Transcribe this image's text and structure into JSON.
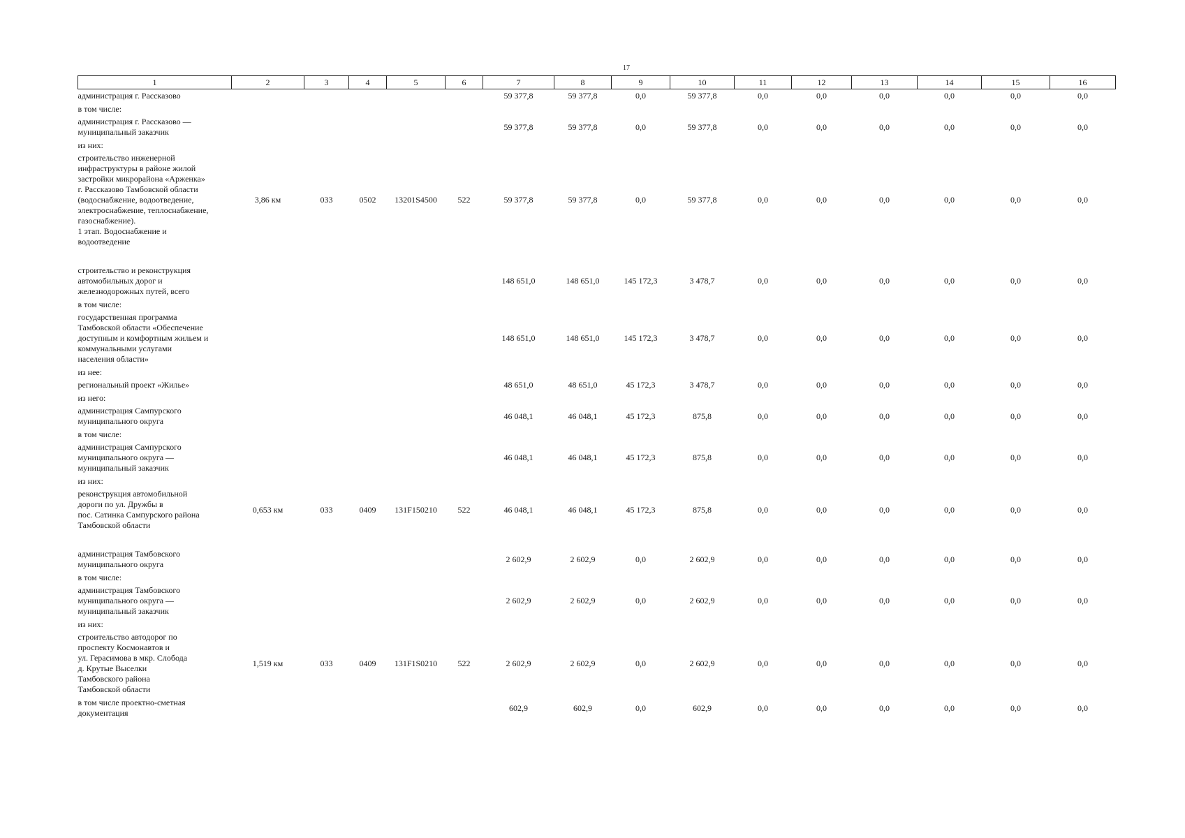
{
  "page_number": "17",
  "header": [
    "1",
    "2",
    "3",
    "4",
    "5",
    "6",
    "7",
    "8",
    "9",
    "10",
    "11",
    "12",
    "13",
    "14",
    "15",
    "16"
  ],
  "rows": [
    {
      "label": "администрация г. Рассказово",
      "c2": "",
      "c3": "",
      "c4": "",
      "c5": "",
      "c6": "",
      "c7": "59 377,8",
      "c8": "59 377,8",
      "c9": "0,0",
      "c10": "59 377,8",
      "c11": "0,0",
      "c12": "0,0",
      "c13": "0,0",
      "c14": "0,0",
      "c15": "0,0",
      "c16": "0,0"
    },
    {
      "label": "в том числе:"
    },
    {
      "label": "администрация г. Рассказово —\nмуниципальный заказчик",
      "c2": "",
      "c3": "",
      "c4": "",
      "c5": "",
      "c6": "",
      "c7": "59 377,8",
      "c8": "59 377,8",
      "c9": "0,0",
      "c10": "59 377,8",
      "c11": "0,0",
      "c12": "0,0",
      "c13": "0,0",
      "c14": "0,0",
      "c15": "0,0",
      "c16": "0,0"
    },
    {
      "label": "из них:"
    },
    {
      "label": "строительство инженерной\nинфраструктуры в районе жилой\nзастройки микрорайона «Арженка»\nг. Рассказово Тамбовской области\n(водоснабжение, водоотведение,\nэлектроснабжение, теплоснабжение,\nгазоснабжение).\n1 этап. Водоснабжение и\nводоотведение",
      "c2": "3,86 км",
      "c3": "033",
      "c4": "0502",
      "c5": "13201S4500",
      "c6": "522",
      "c7": "59 377,8",
      "c8": "59 377,8",
      "c9": "0,0",
      "c10": "59 377,8",
      "c11": "0,0",
      "c12": "0,0",
      "c13": "0,0",
      "c14": "0,0",
      "c15": "0,0",
      "c16": "0,0",
      "gap_after": true
    },
    {
      "label": "строительство и реконструкция\nавтомобильных дорог и\nжелезнодорожных путей, всего",
      "c2": "",
      "c3": "",
      "c4": "",
      "c5": "",
      "c6": "",
      "c7": "148 651,0",
      "c8": "148 651,0",
      "c9": "145 172,3",
      "c10": "3 478,7",
      "c11": "0,0",
      "c12": "0,0",
      "c13": "0,0",
      "c14": "0,0",
      "c15": "0,0",
      "c16": "0,0"
    },
    {
      "label": "в том числе:"
    },
    {
      "label": "государственная программа\nТамбовской области «Обеспечение\nдоступным и комфортным жильем и\nкоммунальными услугами\nнаселения области»",
      "c2": "",
      "c3": "",
      "c4": "",
      "c5": "",
      "c6": "",
      "c7": "148 651,0",
      "c8": "148 651,0",
      "c9": "145 172,3",
      "c10": "3 478,7",
      "c11": "0,0",
      "c12": "0,0",
      "c13": "0,0",
      "c14": "0,0",
      "c15": "0,0",
      "c16": "0,0"
    },
    {
      "label": "из нее:"
    },
    {
      "label": "региональный проект «Жилье»",
      "c2": "",
      "c3": "",
      "c4": "",
      "c5": "",
      "c6": "",
      "c7": "48 651,0",
      "c8": "48 651,0",
      "c9": "45 172,3",
      "c10": "3 478,7",
      "c11": "0,0",
      "c12": "0,0",
      "c13": "0,0",
      "c14": "0,0",
      "c15": "0,0",
      "c16": "0,0"
    },
    {
      "label": "из него:"
    },
    {
      "label": "администрация Сампурского\nмуниципального округа",
      "c2": "",
      "c3": "",
      "c4": "",
      "c5": "",
      "c6": "",
      "c7": "46 048,1",
      "c8": "46 048,1",
      "c9": "45 172,3",
      "c10": "875,8",
      "c11": "0,0",
      "c12": "0,0",
      "c13": "0,0",
      "c14": "0,0",
      "c15": "0,0",
      "c16": "0,0"
    },
    {
      "label": "в том числе:"
    },
    {
      "label": "администрация Сампурского\nмуниципального округа —\nмуниципальный заказчик",
      "c2": "",
      "c3": "",
      "c4": "",
      "c5": "",
      "c6": "",
      "c7": "46 048,1",
      "c8": "46 048,1",
      "c9": "45 172,3",
      "c10": "875,8",
      "c11": "0,0",
      "c12": "0,0",
      "c13": "0,0",
      "c14": "0,0",
      "c15": "0,0",
      "c16": "0,0"
    },
    {
      "label": "из них:"
    },
    {
      "label": "реконструкция автомобильной\nдороги по ул. Дружбы в\nпос. Сатинка Сампурского района\nТамбовской области",
      "c2": "0,653 км",
      "c3": "033",
      "c4": "0409",
      "c5": "131F150210",
      "c6": "522",
      "c7": "46 048,1",
      "c8": "46 048,1",
      "c9": "45 172,3",
      "c10": "875,8",
      "c11": "0,0",
      "c12": "0,0",
      "c13": "0,0",
      "c14": "0,0",
      "c15": "0,0",
      "c16": "0,0",
      "gap_after": true
    },
    {
      "label": "администрация Тамбовского\nмуниципального округа",
      "c2": "",
      "c3": "",
      "c4": "",
      "c5": "",
      "c6": "",
      "c7": "2 602,9",
      "c8": "2 602,9",
      "c9": "0,0",
      "c10": "2 602,9",
      "c11": "0,0",
      "c12": "0,0",
      "c13": "0,0",
      "c14": "0,0",
      "c15": "0,0",
      "c16": "0,0"
    },
    {
      "label": "в том числе:"
    },
    {
      "label": "администрация Тамбовского\nмуниципального округа —\nмуниципальный заказчик",
      "c2": "",
      "c3": "",
      "c4": "",
      "c5": "",
      "c6": "",
      "c7": "2 602,9",
      "c8": "2 602,9",
      "c9": "0,0",
      "c10": "2 602,9",
      "c11": "0,0",
      "c12": "0,0",
      "c13": "0,0",
      "c14": "0,0",
      "c15": "0,0",
      "c16": "0,0"
    },
    {
      "label": "из них:"
    },
    {
      "label": "строительство автодорог по\nпроспекту Космонавтов и\nул. Герасимова в мкр. Слобода\nд. Крутые Выселки\nТамбовского района\nТамбовской области",
      "c2": "1,519 км",
      "c3": "033",
      "c4": "0409",
      "c5": "131F1S0210",
      "c6": "522",
      "c7": "2 602,9",
      "c8": "2 602,9",
      "c9": "0,0",
      "c10": "2 602,9",
      "c11": "0,0",
      "c12": "0,0",
      "c13": "0,0",
      "c14": "0,0",
      "c15": "0,0",
      "c16": "0,0"
    },
    {
      "label": "в том числе проектно-сметная\nдокументация",
      "c2": "",
      "c3": "",
      "c4": "",
      "c5": "",
      "c6": "",
      "c7": "602,9",
      "c8": "602,9",
      "c9": "0,0",
      "c10": "602,9",
      "c11": "0,0",
      "c12": "0,0",
      "c13": "0,0",
      "c14": "0,0",
      "c15": "0,0",
      "c16": "0,0"
    }
  ]
}
